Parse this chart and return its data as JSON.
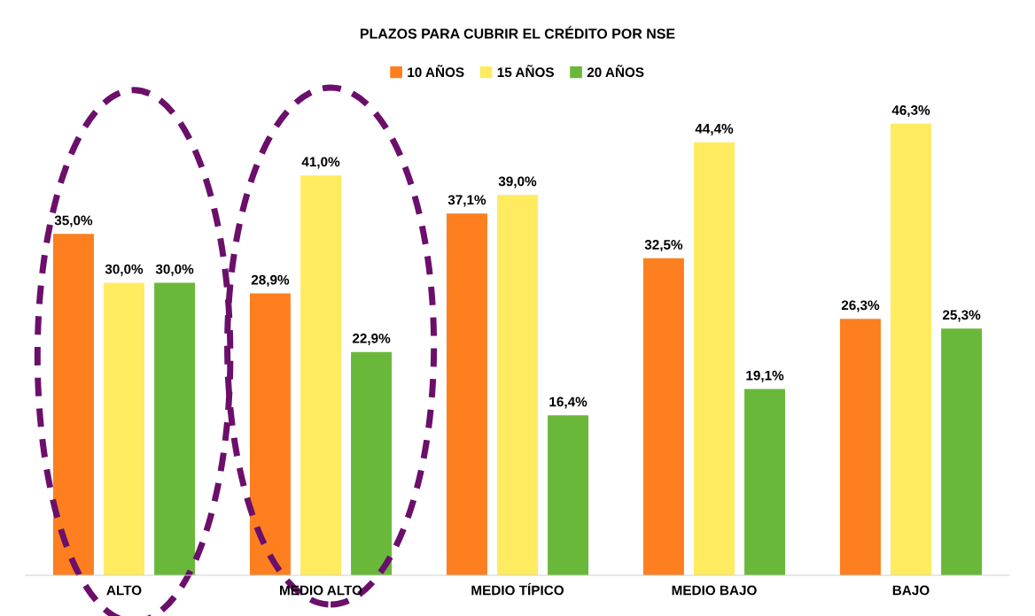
{
  "chart_data": {
    "type": "bar",
    "title": "PLAZOS PARA CUBRIR EL CRÉDITO POR NSE",
    "categories": [
      "ALTO",
      "MEDIO ALTO",
      "MEDIO TÍPICO",
      "MEDIO BAJO",
      "BAJO"
    ],
    "series": [
      {
        "name": "10 AÑOS",
        "color": "#fd7f1f",
        "values": [
          35.0,
          28.9,
          37.1,
          32.5,
          26.3
        ],
        "value_labels": [
          "35,0%",
          "28,9%",
          "37,1%",
          "32,5%",
          "26,3%"
        ]
      },
      {
        "name": "15 AÑOS",
        "color": "#ffeb5f",
        "values": [
          30.0,
          41.0,
          39.0,
          44.4,
          46.3
        ],
        "value_labels": [
          "30,0%",
          "41,0%",
          "39,0%",
          "44,4%",
          "46,3%"
        ]
      },
      {
        "name": "20 AÑOS",
        "color": "#6ab83a",
        "values": [
          30.0,
          22.9,
          16.4,
          19.1,
          25.3
        ],
        "value_labels": [
          "30,0%",
          "22,9%",
          "16,4%",
          "19,1%",
          "25,3%"
        ]
      }
    ],
    "legend": "top",
    "grid": false
  }
}
